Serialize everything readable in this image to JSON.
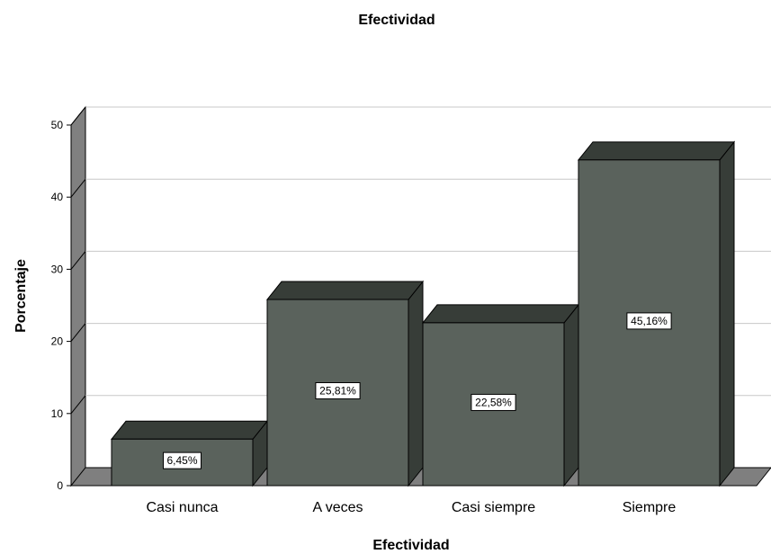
{
  "chart_data": {
    "type": "bar",
    "title": "Efectividad",
    "xlabel": "Efectividad",
    "ylabel": "Porcentaje",
    "categories": [
      "Casi nunca",
      "A veces",
      "Casi siempre",
      "Siempre"
    ],
    "values": [
      6.45,
      25.81,
      22.58,
      45.16
    ],
    "data_labels": [
      "6,45%",
      "25,81%",
      "22,58%",
      "45,16%"
    ],
    "ylim": [
      0,
      50
    ],
    "yticks": [
      "0",
      "10",
      "20",
      "30",
      "40",
      "50"
    ],
    "grid": true,
    "legend": "none",
    "style": "3d-bar",
    "colors": {
      "bar_front": "#5a625c",
      "bar_top": "#373d38",
      "bar_side": "#373d38",
      "left_wall": "#808080",
      "floor": "#7f7f7f",
      "gridline": "#c8c8c8"
    }
  }
}
